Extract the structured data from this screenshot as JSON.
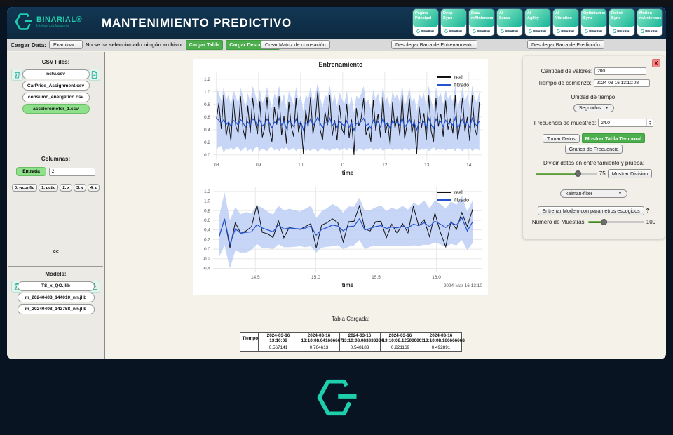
{
  "window": {
    "title": "MANTENIMIENTO PREDICTIVO"
  },
  "brand": {
    "name": "BINARIAL®",
    "subtitle": "Inteligencia Industrial"
  },
  "nav_buttons": [
    {
      "line1": "Página",
      "line2": "Principal",
      "brand": "BINARIAL"
    },
    {
      "line1": "Deep",
      "line2": "Sync",
      "brand": "BINARIAL"
    },
    {
      "line1": "Data",
      "line2": "mAIntenance",
      "brand": "BINARIAL"
    },
    {
      "line1": "AI",
      "line2": "Scrap",
      "brand": "BINARIAL"
    },
    {
      "line1": "AI",
      "line2": "Agility",
      "brand": "BINARIAL"
    },
    {
      "line1": "AI",
      "line2": "Vibration",
      "brand": "BINARIAL"
    },
    {
      "line1": "Optimization",
      "line2": "Sync",
      "brand": "BINARIAL"
    },
    {
      "line1": "Robot",
      "line2": "Sync",
      "brand": "BINARIAL"
    },
    {
      "line1": "Motion",
      "line2": "mAIntenance",
      "brand": "BINARIAL"
    }
  ],
  "toolbar": {
    "cargar_data_label": "Cargar Data:",
    "examinar": "Examinar...",
    "no_file": "No se ha seleccionado ningún archivo.",
    "cargar_tabla": "Cargar Tabla",
    "cargar_descripcion": "Cargar Descripción",
    "crear_matriz": "Crear Matriz de correlación",
    "desplegar_entrenamiento": "Desplegar Barra de Entrenamiento",
    "desplegar_prediccion": "Desplegar Barra de Predicción"
  },
  "sidebar": {
    "csv_title": "CSV Files:",
    "csv_files": [
      {
        "name": "nctu.csv",
        "selected": false
      },
      {
        "name": "CarPrice_Assignment.csv",
        "selected": false
      },
      {
        "name": "consumo_energetico.csv",
        "selected": false
      },
      {
        "name": "accelerometer_1.csv",
        "selected": true
      }
    ],
    "columnas_title": "Columnas:",
    "entrada_label": "Entrada",
    "entrada_value": "2",
    "column_buttons": [
      "0. wconfid",
      "1. pctid",
      "2. x",
      "3. y",
      "4. z"
    ],
    "collapse_label": "<<",
    "models_title": "Models:",
    "models": [
      "TS_x_QO.jlib",
      "m_20240408_144010_nn.jlib",
      "m_20240408_143758_nn.jlib"
    ]
  },
  "panel": {
    "close": "X",
    "cantidad_label": "Cantidad de valores:",
    "cantidad_value": "200",
    "tiempo_label": "Tiempo de comienzo:",
    "tiempo_value": "2024-03-16 13:10:08",
    "unidad_label": "Unidad de tiempo:",
    "unidad_value": "Segundos",
    "frecuencia_label": "Frecuencia de muestreo:",
    "frecuencia_value": "24.0",
    "tomar_datos": "Tomar Datos",
    "mostrar_tabla": "Mostrar Tabla Temporal",
    "grafica_frecuencia": "Gráfica de Frecuencia",
    "dividir_label": "Dividir datos en entrenamiento y prueba:",
    "dividir_value": "75",
    "dividir_slider_pos": 68,
    "mostrar_division": "Mostrar División",
    "filter_value": "kalman-filter",
    "entrenar": "Entrenar Modelo con parametros escogidos",
    "help": "?",
    "muestras_label": "Número de Muestras:",
    "muestras_value": "100",
    "muestras_slider_pos": 28
  },
  "table": {
    "title": "Tabla Cargada:",
    "headers": [
      "Tiempo",
      "2024-03-16 13:10:08",
      "2024-03-16 13:10:08.041666667",
      "2024-03-16 13:10:08.083333334",
      "2024-03-16 13:10:08.125000001",
      "2024-03-16 13:10:08.166666668"
    ],
    "row": [
      "",
      "0.567141",
      "0.764613",
      "0.548183",
      "0.221169",
      "0.492891"
    ]
  },
  "colors": {
    "accent_teal": "#1ecfae",
    "header_navy": "#0e2c44",
    "button_green": "#4cae4c",
    "selected_green": "#8ee08a",
    "close_red": "#f28b8b"
  },
  "chart_data": [
    {
      "type": "line",
      "title": "Entrenamiento",
      "xlabel": "time",
      "legend_position": "top-right",
      "grid": true,
      "axis": {
        "x_min": 7.92,
        "x_max": 14.32,
        "y_min": -0.08,
        "y_max": 1.32
      },
      "data_x_start": 8.0,
      "data_x_end": 14.25,
      "x_ticks": [
        8,
        9,
        10,
        11,
        12,
        13,
        14
      ],
      "x_tick_labels": [
        "08",
        "09",
        "10",
        "11",
        "12",
        "13",
        "14"
      ],
      "y_ticks": [
        0.0,
        0.2,
        0.4,
        0.6,
        0.8,
        1.0,
        1.2
      ],
      "margins": {
        "l": 28,
        "r": 8,
        "t": 18,
        "b": 30
      },
      "colors": {
        "real": "#111111",
        "filtrado": "#2353cf",
        "band": "#b9cbf5"
      },
      "legend": [
        {
          "label": "real",
          "color": "#111111"
        },
        {
          "label": "filtrado",
          "color": "#2353cf"
        }
      ],
      "series": {
        "real": [
          0.57,
          0.82,
          0.41,
          0.95,
          0.3,
          0.52,
          0.22,
          0.88,
          0.46,
          0.35,
          0.93,
          0.41,
          0.25,
          0.78,
          0.35,
          0.91,
          0.55,
          0.33,
          0.85,
          0.28,
          0.43,
          0.92,
          0.38,
          0.21,
          0.76,
          0.48,
          0.93,
          0.31,
          0.62,
          0.18,
          0.84,
          0.45,
          0.29,
          0.9,
          0.36,
          0.53,
          0.02,
          0.71,
          0.44,
          0.92,
          0.33,
          0.57,
          1.02,
          0.4,
          0.24,
          0.68,
          0.47,
          0.95,
          0.3,
          0.55,
          0.23,
          0.79,
          0.41,
          0.33,
          0.81,
          0.27,
          0.56,
          0.0,
          0.74,
          0.46,
          0.58,
          0.9,
          0.32,
          0.44,
          0.21,
          0.87,
          0.39,
          0.65,
          0.28,
          0.92,
          0.35,
          0.5,
          0.16,
          0.83,
          0.42,
          0.62,
          0.3,
          0.94,
          0.26,
          0.48,
          0.89,
          0.34,
          0.56,
          0.01,
          0.77,
          0.43,
          0.66,
          0.24,
          0.94,
          0.38,
          0.21,
          0.9,
          0.45,
          0.65,
          0.29,
          0.86,
          0.4,
          0.58,
          0.34,
          0.95,
          0.25,
          0.49,
          0.91,
          0.37,
          0.6,
          0.22,
          0.94,
          0.44,
          0.3,
          0.84
        ],
        "filtrado": [
          0.58,
          0.55,
          0.5,
          0.56,
          0.48,
          0.52,
          0.45,
          0.55,
          0.52,
          0.47,
          0.56,
          0.51,
          0.44,
          0.52,
          0.47,
          0.57,
          0.54,
          0.47,
          0.55,
          0.46,
          0.49,
          0.57,
          0.5,
          0.43,
          0.52,
          0.5,
          0.58,
          0.47,
          0.53,
          0.42,
          0.54,
          0.5,
          0.45,
          0.57,
          0.48,
          0.52,
          0.4,
          0.51,
          0.49,
          0.57,
          0.47,
          0.52,
          0.6,
          0.5,
          0.43,
          0.51,
          0.5,
          0.58,
          0.46,
          0.52,
          0.44,
          0.53,
          0.49,
          0.46,
          0.54,
          0.44,
          0.51,
          0.39,
          0.5,
          0.49,
          0.53,
          0.58,
          0.46,
          0.49,
          0.42,
          0.55,
          0.48,
          0.53,
          0.44,
          0.58,
          0.47,
          0.51,
          0.41,
          0.54,
          0.49,
          0.53,
          0.46,
          0.59,
          0.44,
          0.49,
          0.57,
          0.46,
          0.51,
          0.4,
          0.52,
          0.49,
          0.53,
          0.43,
          0.58,
          0.48,
          0.42,
          0.57,
          0.5,
          0.53,
          0.45,
          0.55,
          0.49,
          0.52,
          0.47,
          0.59,
          0.43,
          0.49,
          0.57,
          0.47,
          0.52,
          0.43,
          0.58,
          0.5,
          0.46,
          0.54
        ],
        "band_width": [
          0.5,
          0.42,
          0.36,
          0.52,
          0.38,
          0.44,
          0.33,
          0.48,
          0.4,
          0.35,
          0.5,
          0.42,
          0.31,
          0.46,
          0.37,
          0.52,
          0.43,
          0.34,
          0.49,
          0.36,
          0.41,
          0.51,
          0.39,
          0.31,
          0.45,
          0.4,
          0.52,
          0.36,
          0.44,
          0.3,
          0.47,
          0.41,
          0.34,
          0.51,
          0.38,
          0.43,
          0.29,
          0.45,
          0.4,
          0.51,
          0.37,
          0.43,
          0.55,
          0.41,
          0.32,
          0.44,
          0.41,
          0.52,
          0.36,
          0.43,
          0.33,
          0.46,
          0.4,
          0.35,
          0.47,
          0.33,
          0.42,
          0.28,
          0.44,
          0.4,
          0.44,
          0.51,
          0.36,
          0.4,
          0.31,
          0.48,
          0.39,
          0.45,
          0.33,
          0.52,
          0.38,
          0.42,
          0.3,
          0.47,
          0.4,
          0.45,
          0.36,
          0.53,
          0.33,
          0.4,
          0.5,
          0.36,
          0.42,
          0.29,
          0.45,
          0.4,
          0.45,
          0.32,
          0.52,
          0.39,
          0.3,
          0.5,
          0.41,
          0.45,
          0.35,
          0.48,
          0.4,
          0.43,
          0.37,
          0.53,
          0.32,
          0.4,
          0.51,
          0.37,
          0.44,
          0.32,
          0.52,
          0.41,
          0.36,
          0.47
        ]
      }
    },
    {
      "type": "line",
      "title": "",
      "xlabel": "time",
      "annotation": "2024-Mar-16 13:10",
      "legend_position": "top-right",
      "grid": true,
      "axis": {
        "x_min": 14.15,
        "x_max": 16.38,
        "y_min": -0.48,
        "y_max": 1.3
      },
      "data_x_start": 14.2,
      "data_x_end": 16.3,
      "x_ticks": [
        14.5,
        15.0,
        15.5,
        16.0
      ],
      "x_tick_labels": [
        "14.5",
        "15.0",
        "15.5",
        "16.0"
      ],
      "y_ticks": [
        -0.4,
        -0.2,
        0.0,
        0.2,
        0.4,
        0.6,
        0.8,
        1.0,
        1.2
      ],
      "margins": {
        "l": 28,
        "r": 8,
        "t": 8,
        "b": 30
      },
      "colors": {
        "real": "#111111",
        "filtrado": "#2353cf",
        "band": "#b9cbf5"
      },
      "legend": [
        {
          "label": "real",
          "color": "#111111"
        },
        {
          "label": "filtrado",
          "color": "#2353cf"
        }
      ],
      "series": {
        "real": [
          0.26,
          0.63,
          0.03,
          0.55,
          0.33,
          0.38,
          0.47,
          0.92,
          0.35,
          0.32,
          0.24,
          0.59,
          0.24,
          0.45,
          0.43,
          0.41,
          0.47,
          0.53,
          0.03,
          0.5,
          0.55,
          0.63,
          0.55,
          0.15,
          0.57,
          0.58,
          0.9,
          0.42,
          0.38,
          0.57,
          0.58,
          0.24,
          0.52,
          0.33,
          0.53,
          0.34,
          0.89,
          0.48,
          0.61,
          0.26,
          0.75,
          0.35,
          0.05,
          0.58,
          0.41,
          0.76,
          0.47,
          0.83
        ],
        "filtrado": [
          0.26,
          0.63,
          0.1,
          0.42,
          0.33,
          0.35,
          0.36,
          0.51,
          0.44,
          0.4,
          0.36,
          0.5,
          0.42,
          0.44,
          0.43,
          0.42,
          0.44,
          0.48,
          0.29,
          0.41,
          0.45,
          0.5,
          0.48,
          0.38,
          0.47,
          0.48,
          0.63,
          0.4,
          0.43,
          0.47,
          0.49,
          0.43,
          0.46,
          0.44,
          0.48,
          0.44,
          0.52,
          0.49,
          0.55,
          0.47,
          0.58,
          0.52,
          0.45,
          0.55,
          0.5,
          0.65,
          0.38,
          0.57
        ],
        "band_width": [
          0.42,
          0.55,
          0.5,
          0.45,
          0.4,
          0.42,
          0.38,
          0.4,
          0.42,
          0.38,
          0.36,
          0.4,
          0.38,
          0.4,
          0.38,
          0.36,
          0.4,
          0.42,
          0.36,
          0.38,
          0.4,
          0.44,
          0.4,
          0.38,
          0.42,
          0.4,
          0.44,
          0.4,
          0.38,
          0.4,
          0.42,
          0.36,
          0.4,
          0.38,
          0.42,
          0.38,
          0.44,
          0.42,
          0.46,
          0.38,
          0.44,
          0.42,
          0.4,
          0.44,
          0.42,
          0.46,
          0.4,
          0.44
        ]
      }
    }
  ]
}
